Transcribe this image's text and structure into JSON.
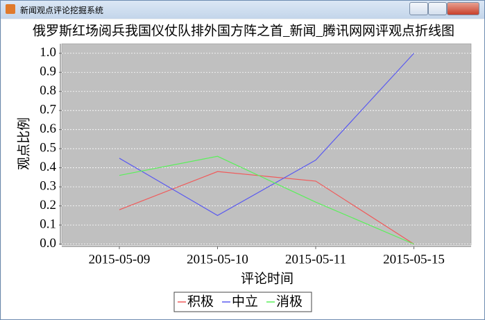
{
  "window": {
    "title": "新闻观点评论挖掘系统"
  },
  "chart_data": {
    "type": "line",
    "title": "俄罗斯红场阅兵我国仪仗队排外国方阵之首_新闻_腾讯网网评观点折线图",
    "x_label": "评论时间",
    "y_label": "观点比例",
    "categories": [
      "2015-05-09",
      "2015-05-10",
      "2015-05-11",
      "2015-05-15"
    ],
    "series": [
      {
        "name": "积极",
        "color": "#f05a5a",
        "values": [
          0.18,
          0.38,
          0.33,
          0.0
        ]
      },
      {
        "name": "中立",
        "color": "#5a5af0",
        "values": [
          0.45,
          0.15,
          0.44,
          1.0
        ]
      },
      {
        "name": "消极",
        "color": "#5af05a",
        "values": [
          0.36,
          0.46,
          0.22,
          0.0
        ]
      }
    ],
    "ylim": [
      -0.005,
      1.05
    ],
    "yticks": [
      {
        "value": 0,
        "label": "0.0"
      },
      0.1,
      0.2,
      0.3,
      0.4,
      0.5,
      0.6,
      0.7,
      0.8,
      0.9,
      {
        "value": 1,
        "label": "1.0"
      }
    ],
    "grid": true,
    "legend": "bottom"
  }
}
